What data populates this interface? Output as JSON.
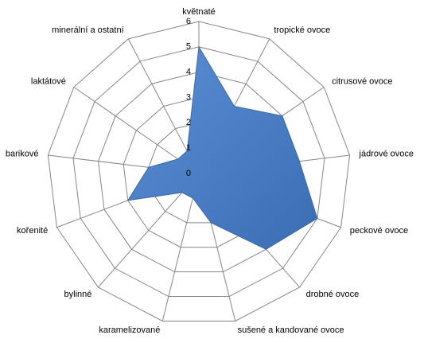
{
  "chart_data": {
    "type": "radar",
    "categories": [
      "květnaté",
      "tropické ovoce",
      "citrusové ovoce",
      "jádrové ovoce",
      "peckové ovoce",
      "drobné ovoce",
      "sušené a kandované ovoce",
      "karamelizované",
      "bylinné",
      "kořenité",
      "barikové",
      "laktátové",
      "minerální a ostatní"
    ],
    "values": [
      5,
      3,
      4,
      4,
      5,
      4,
      2,
      1,
      1,
      3,
      2,
      1,
      1
    ],
    "color": "#4a7ebb",
    "ylim": [
      0,
      6
    ],
    "yticks": [
      0,
      1,
      2,
      3,
      4,
      5,
      6
    ],
    "grid": true
  }
}
